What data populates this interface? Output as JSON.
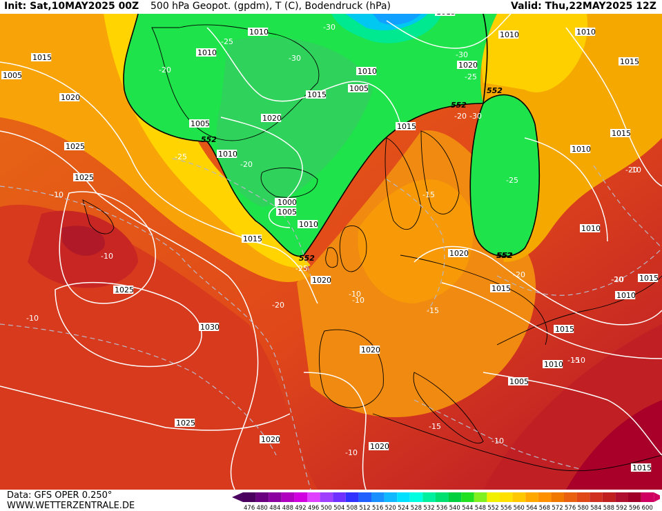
{
  "header": {
    "init": "Init: Sat,10MAY2025 00Z",
    "title": "500 hPa Geopot. (gpdm), T (C), Bodendruck (hPa)",
    "valid": "Valid: Thu,22MAY2025 12Z"
  },
  "footer": {
    "data_source": "Data: GFS OPER 0.250°",
    "website": "WWW.WETTERZENTRALE.DE"
  },
  "legend": {
    "values": [
      "476",
      "480",
      "484",
      "488",
      "492",
      "496",
      "500",
      "504",
      "508",
      "512",
      "516",
      "520",
      "524",
      "528",
      "532",
      "536",
      "540",
      "544",
      "548",
      "552",
      "556",
      "560",
      "564",
      "568",
      "572",
      "576",
      "580",
      "584",
      "588",
      "592",
      "596",
      "600"
    ],
    "colors": [
      "#4b0060",
      "#6a0080",
      "#8a00a0",
      "#b000c0",
      "#d000e0",
      "#e040ff",
      "#a040ff",
      "#7030ff",
      "#3030ff",
      "#2060ff",
      "#1a90ff",
      "#10b8ff",
      "#00e0ff",
      "#00ffe0",
      "#00f0a0",
      "#00e070",
      "#00d040",
      "#20e020",
      "#80f020",
      "#f0f000",
      "#ffe000",
      "#ffc800",
      "#ffa800",
      "#ff9000",
      "#f07800",
      "#e86010",
      "#e04818",
      "#d03020",
      "#c02020",
      "#b01030",
      "#a00028",
      "#d00060"
    ]
  },
  "map": {
    "pressure_labels": [
      "1015",
      "1010",
      "1010",
      "1010",
      "1015",
      "1010",
      "1015",
      "1010",
      "1020",
      "1015",
      "1005",
      "1020",
      "1020",
      "1015",
      "1005",
      "1015",
      "1025",
      "1010",
      "1010",
      "1010",
      "1025",
      "1010",
      "1000",
      "1005",
      "1010",
      "1015",
      "1020",
      "1020",
      "1015",
      "1020",
      "1025",
      "1015",
      "1010",
      "1030",
      "1015",
      "1020",
      "1010",
      "1005",
      "1025",
      "1020",
      "1015",
      "1005",
      "15"
    ],
    "temp_labels": [
      "-30",
      "-25",
      "-20",
      "-30",
      "-30",
      "-25",
      "-20",
      "-20",
      "-25",
      "-15",
      "-20",
      "-30",
      "-10",
      "-10",
      "-25",
      "-25",
      "-10",
      "-20",
      "-10",
      "-10",
      "-15",
      "-15",
      "-20",
      "-10",
      "-15",
      "-10",
      "-10",
      "-20",
      "-10",
      "-10"
    ],
    "height_labels": [
      "552",
      "552",
      "552",
      "552",
      "552",
      "552"
    ]
  }
}
